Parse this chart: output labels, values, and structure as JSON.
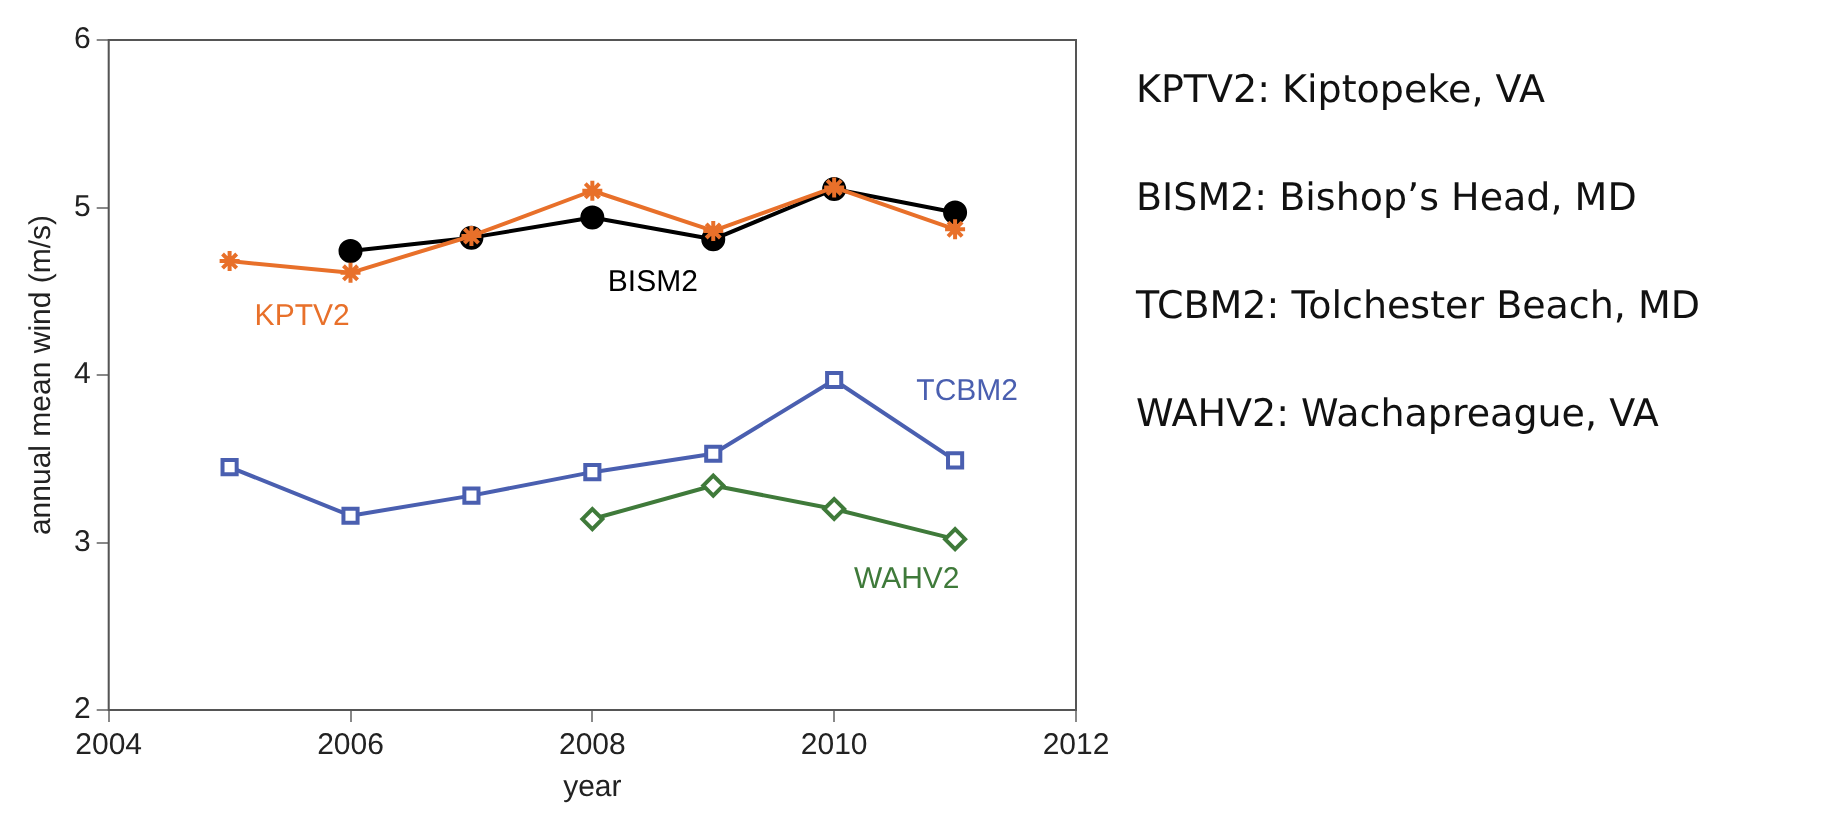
{
  "chart_data": {
    "type": "line",
    "xlabel": "year",
    "ylabel": "annual mean wind (m/s)",
    "xlim": [
      2004,
      2012
    ],
    "xticks": [
      2004,
      2006,
      2008,
      2010,
      2012
    ],
    "ylim": [
      2,
      6
    ],
    "yticks": [
      2,
      3,
      4,
      5,
      6
    ],
    "grid": false,
    "legend": false,
    "series": [
      {
        "name": "KPTV2",
        "color": "#e8702a",
        "marker": "cross",
        "x": [
          2005,
          2006,
          2007,
          2008,
          2009,
          2010,
          2011
        ],
        "values": [
          4.68,
          4.61,
          4.83,
          5.1,
          4.86,
          5.12,
          4.87
        ]
      },
      {
        "name": "BISM2",
        "color": "#000000",
        "marker": "circle",
        "x": [
          2006,
          2007,
          2008,
          2009,
          2010,
          2011
        ],
        "values": [
          4.74,
          4.82,
          4.94,
          4.81,
          5.11,
          4.97
        ]
      },
      {
        "name": "TCBM2",
        "color": "#4a5fb0",
        "marker": "square",
        "x": [
          2005,
          2006,
          2007,
          2008,
          2009,
          2010,
          2011
        ],
        "values": [
          3.45,
          3.16,
          3.28,
          3.42,
          3.53,
          3.97,
          3.49
        ]
      },
      {
        "name": "WAHV2",
        "color": "#3f7a3a",
        "marker": "diamond",
        "x": [
          2008,
          2009,
          2010,
          2011
        ],
        "values": [
          3.14,
          3.34,
          3.2,
          3.02
        ]
      }
    ],
    "annotations": [
      "KPTV2: Kiptopeke, VA",
      "BISM2: Bishop’s Head, MD",
      "TCBM2: Tolchester Beach, MD",
      "WAHV2: Wachapreague, VA"
    ]
  }
}
